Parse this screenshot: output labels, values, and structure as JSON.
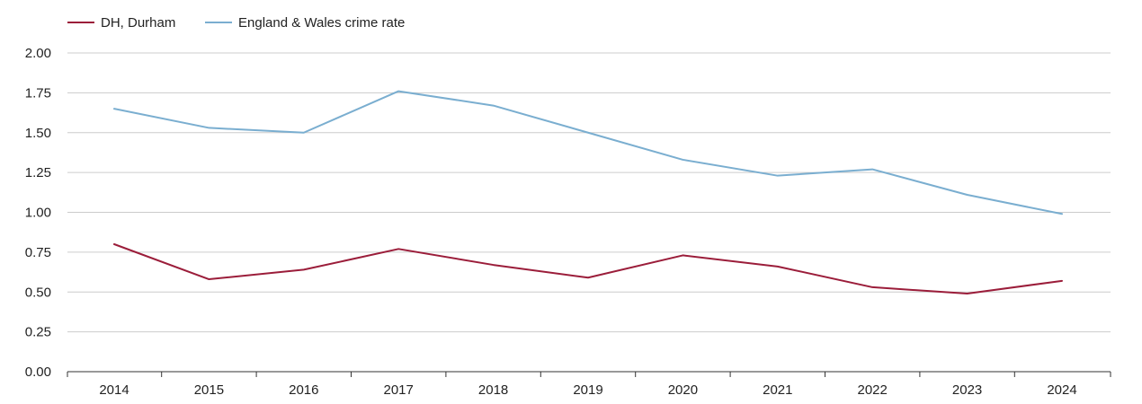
{
  "chart_data": {
    "type": "line",
    "categories": [
      "2014",
      "2015",
      "2016",
      "2017",
      "2018",
      "2019",
      "2020",
      "2021",
      "2022",
      "2023",
      "2024"
    ],
    "series": [
      {
        "name": "DH, Durham",
        "color": "#9b1d3a",
        "values": [
          0.8,
          0.58,
          0.64,
          0.77,
          0.67,
          0.59,
          0.73,
          0.66,
          0.53,
          0.49,
          0.57
        ]
      },
      {
        "name": "England & Wales crime rate",
        "color": "#7aaed0",
        "values": [
          1.65,
          1.53,
          1.5,
          1.76,
          1.67,
          1.5,
          1.33,
          1.23,
          1.27,
          1.11,
          0.99
        ]
      }
    ],
    "yticks": [
      "0.00",
      "0.25",
      "0.50",
      "0.75",
      "1.00",
      "1.25",
      "1.50",
      "1.75",
      "2.00"
    ],
    "ylim": [
      0,
      2
    ],
    "grid": true,
    "legend_position": "top-left"
  }
}
